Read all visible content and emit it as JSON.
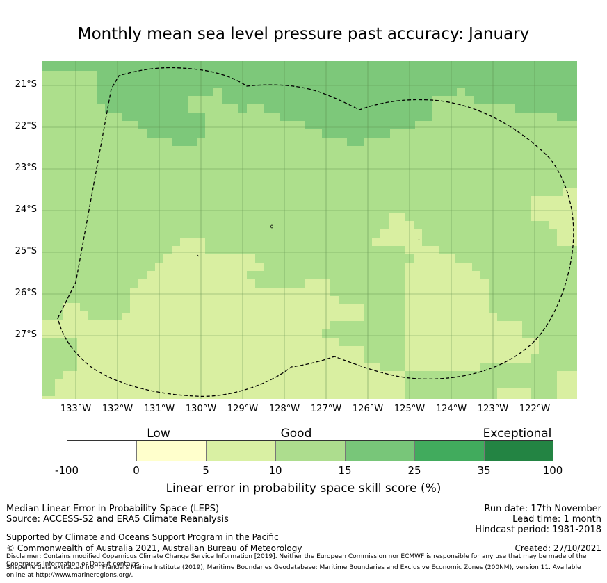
{
  "title": "Monthly mean sea level pressure past accuracy: January",
  "map": {
    "latitude_labels": [
      "21°S",
      "22°S",
      "23°S",
      "24°S",
      "25°S",
      "26°S",
      "27°S"
    ],
    "longitude_labels": [
      "133°W",
      "132°W",
      "131°W",
      "130°W",
      "129°W",
      "128°W",
      "127°W",
      "126°W",
      "125°W",
      "124°W",
      "123°W",
      "122°W"
    ],
    "region_colors": {
      "exceptional_dark": "#7dc87a",
      "good_mid": "#addf8c",
      "low_light": "#d9efa1",
      "gridline": "#5a8a4a",
      "eez_outline": "#000000"
    }
  },
  "legend": {
    "categories": [
      "Low",
      "Good",
      "Exceptional"
    ],
    "ticks": [
      "-100",
      "0",
      "5",
      "10",
      "15",
      "25",
      "35",
      "100"
    ],
    "colors": [
      "#ffffff",
      "#ffffcc",
      "#d9f0a3",
      "#addd8e",
      "#78c679",
      "#41ab5d",
      "#238443"
    ],
    "title": "Linear error in probability space skill score (%)"
  },
  "info": {
    "left_line1": "Median Linear Error in Probability Space (LEPS)",
    "left_line2": "Source: ACCESS-S2 and ERA5 Climate Reanalysis",
    "right_line1": "Run date: 17th November",
    "right_line2": "Lead time: 1 month",
    "right_line3": "Hindcast period: 1981-2018",
    "support": "Supported by Climate and Oceans Support Program in the Pacific",
    "copyright": "© Commonwealth of Australia 2021, Australian Bureau of Meteorology",
    "created": "Created: 27/10/2021",
    "disclaimer": "Disclaimer: Contains modified Copernicus Climate Change Service Information [2019]. Neither the European Commission nor ECMWF is responsible for any use that may be made of the Copernicus Information or Data it contains.",
    "shapefile": "Shapefile data extracted from Flanders Marine Institute (2019), Maritime Boundaries Geodatabase: Maritime Boundaries and Exclusive Economic Zones (200NM), version 11. Available online at http://www.marineregions.org/."
  }
}
